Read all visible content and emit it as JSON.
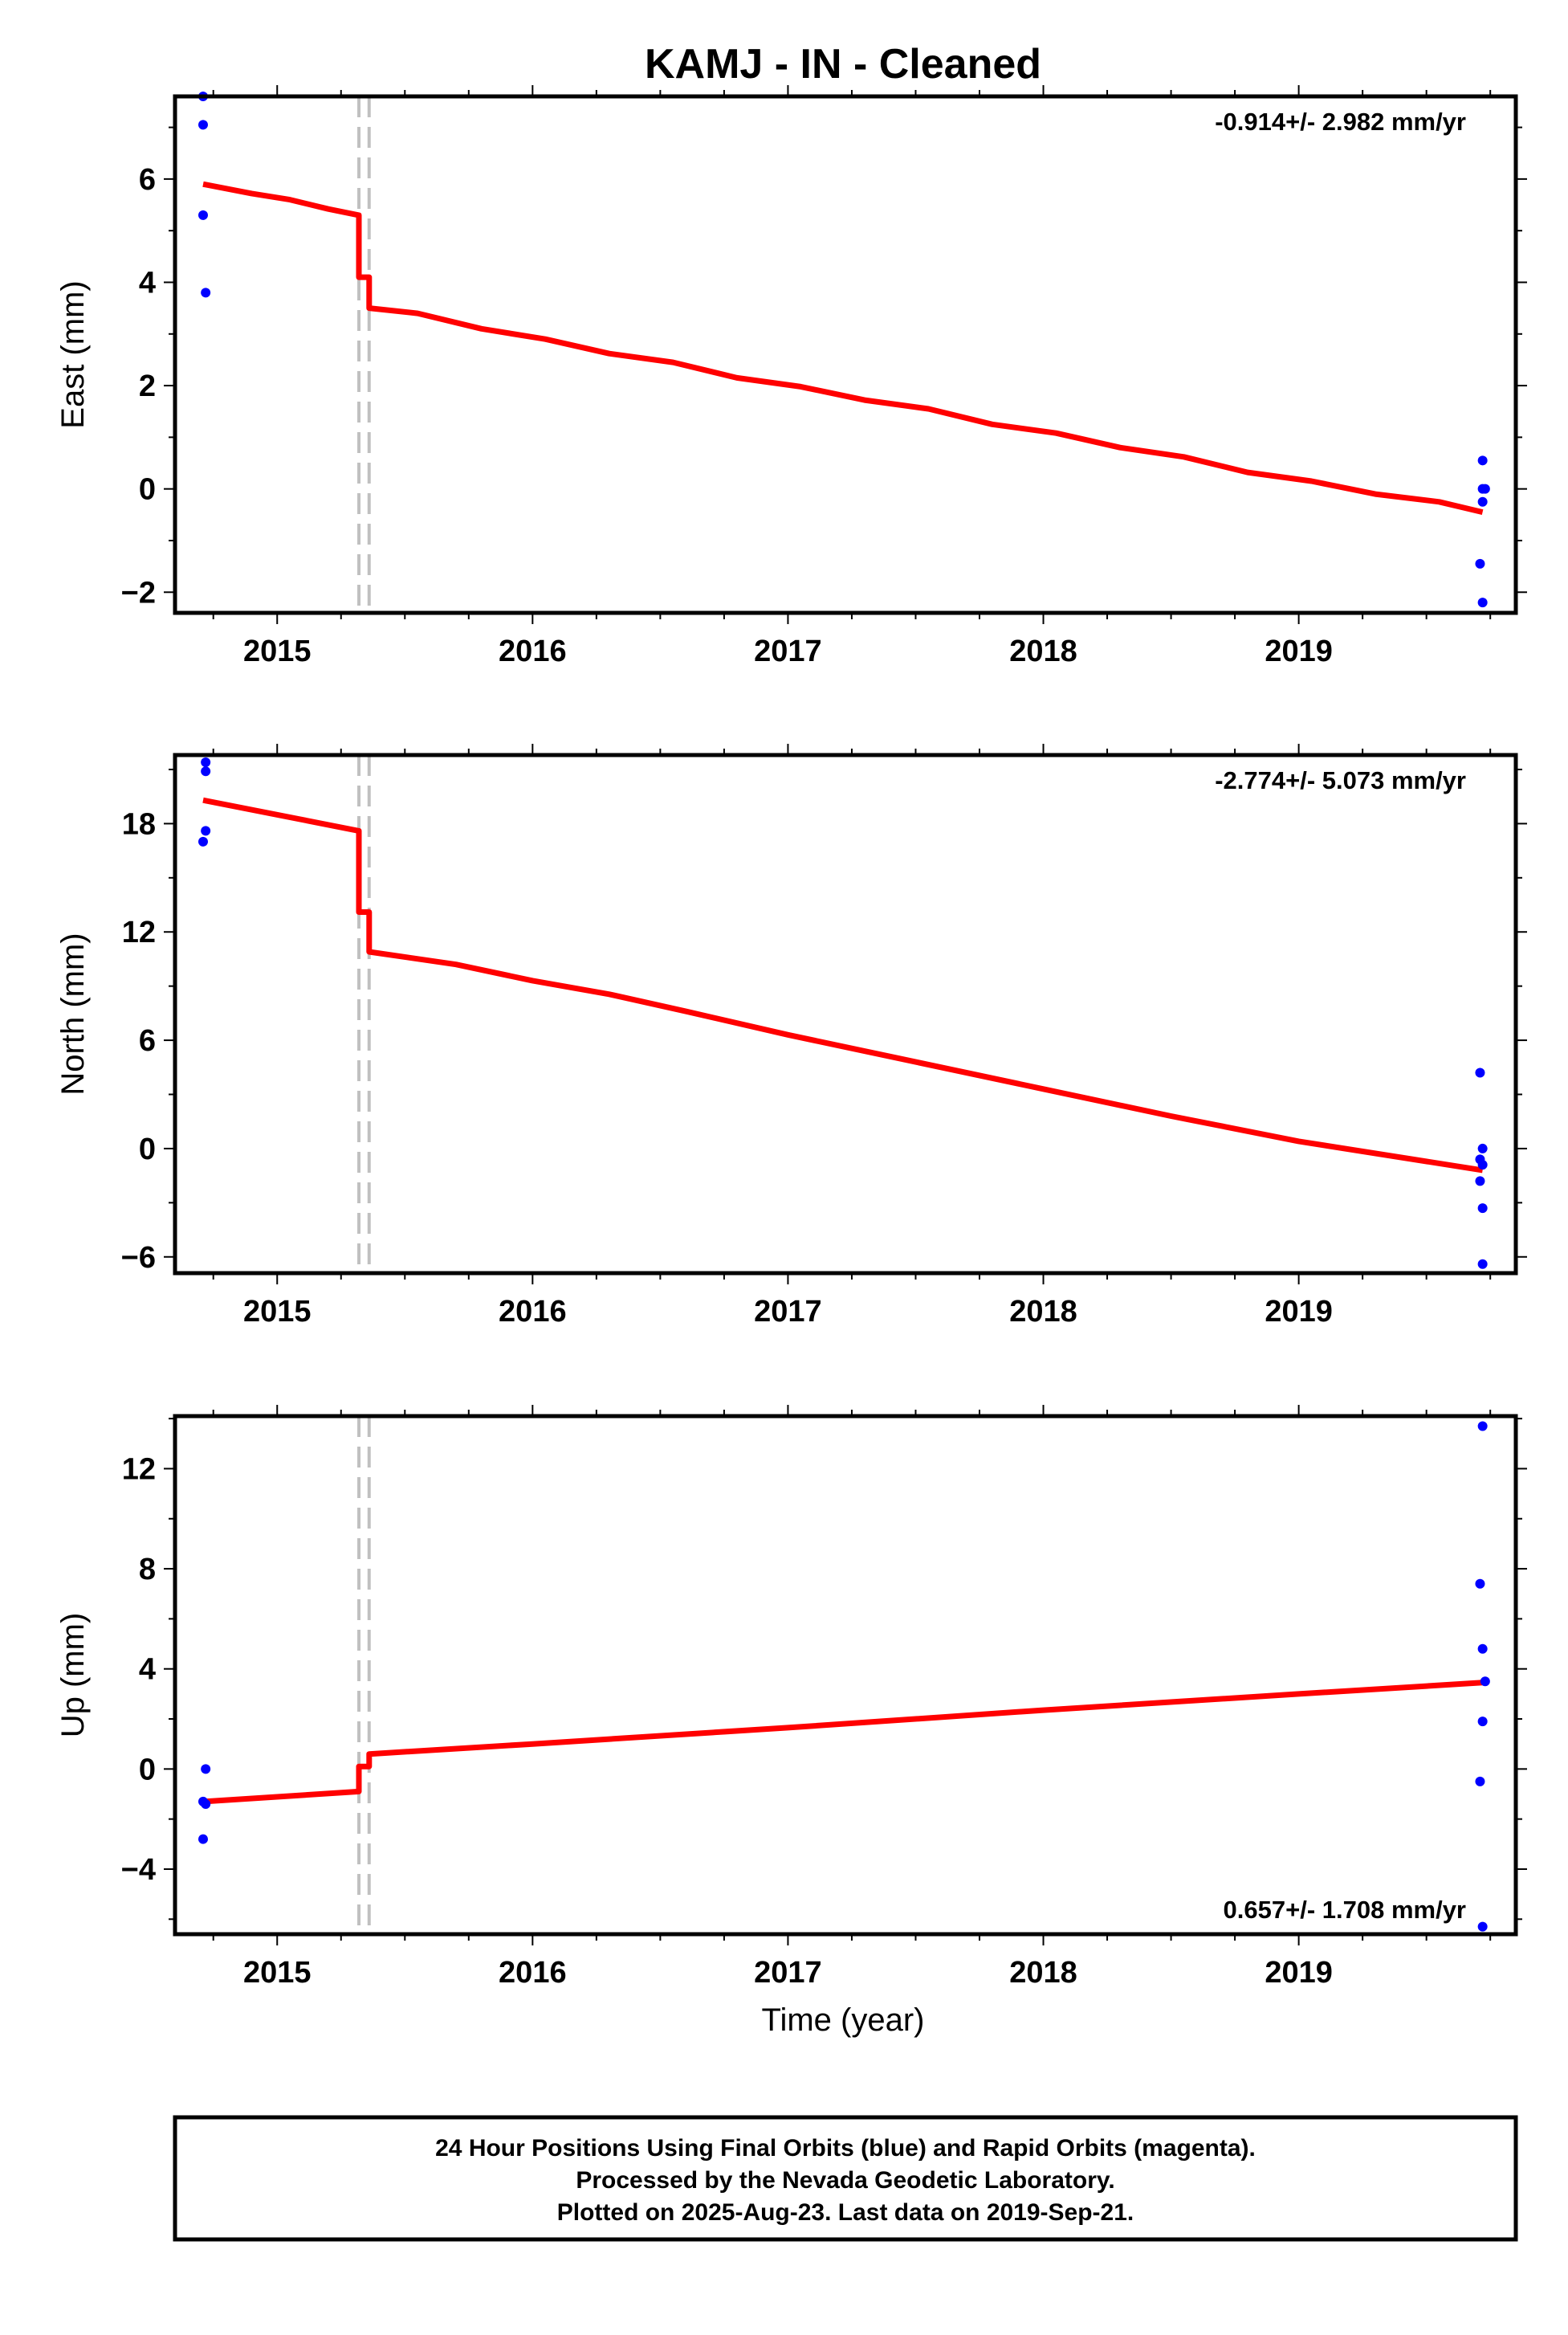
{
  "title": "KAMJ  - IN - Cleaned",
  "x_axis_label": "Time (year)",
  "footer": {
    "line1": "24 Hour Positions Using Final Orbits (blue) and Rapid Orbits (magenta).",
    "line2": "Processed by the Nevada Geodetic Laboratory.",
    "line3": "Plotted on 2025-Aug-23. Last data on 2019-Sep-21."
  },
  "colors": {
    "data_points": "#0000ff",
    "model_line": "#ff0000",
    "event_lines": "#c0c0c0",
    "frame": "#000000"
  },
  "chart_data": [
    {
      "type": "scatter",
      "name": "east",
      "ylabel": "East (mm)",
      "rate_label": "-0.914+/- 2.982 mm/yr",
      "rate_position": "top-right",
      "xlim": [
        2014.6,
        2019.85
      ],
      "ylim": [
        -2.4,
        7.6
      ],
      "x_ticks": [
        2015,
        2016,
        2017,
        2018,
        2019
      ],
      "x_tick_labels": [
        "2015",
        "2016",
        "2017",
        "2018",
        "2019"
      ],
      "y_ticks": [
        -2,
        0,
        2,
        4,
        6
      ],
      "y_tick_labels": [
        "−2",
        "0",
        "2",
        "4",
        "6"
      ],
      "event_lines_x": [
        2015.32,
        2015.36
      ],
      "points": [
        {
          "x": 2014.71,
          "y": 7.6
        },
        {
          "x": 2014.71,
          "y": 7.05
        },
        {
          "x": 2014.71,
          "y": 5.3
        },
        {
          "x": 2014.72,
          "y": 3.8
        },
        {
          "x": 2019.72,
          "y": 0.55
        },
        {
          "x": 2019.72,
          "y": 0.0
        },
        {
          "x": 2019.73,
          "y": 0.0
        },
        {
          "x": 2019.72,
          "y": -0.25
        },
        {
          "x": 2019.71,
          "y": -1.45
        },
        {
          "x": 2019.72,
          "y": -2.2
        }
      ],
      "model": [
        {
          "x": 2014.71,
          "y": 5.9
        },
        {
          "x": 2014.9,
          "y": 5.72
        },
        {
          "x": 2015.05,
          "y": 5.6
        },
        {
          "x": 2015.2,
          "y": 5.42
        },
        {
          "x": 2015.32,
          "y": 5.3
        },
        {
          "x": 2015.32,
          "y": 4.1
        },
        {
          "x": 2015.36,
          "y": 4.1
        },
        {
          "x": 2015.36,
          "y": 3.5
        },
        {
          "x": 2015.55,
          "y": 3.4
        },
        {
          "x": 2015.8,
          "y": 3.1
        },
        {
          "x": 2016.05,
          "y": 2.9
        },
        {
          "x": 2016.3,
          "y": 2.62
        },
        {
          "x": 2016.55,
          "y": 2.45
        },
        {
          "x": 2016.8,
          "y": 2.15
        },
        {
          "x": 2017.05,
          "y": 1.98
        },
        {
          "x": 2017.3,
          "y": 1.72
        },
        {
          "x": 2017.55,
          "y": 1.55
        },
        {
          "x": 2017.8,
          "y": 1.25
        },
        {
          "x": 2018.05,
          "y": 1.08
        },
        {
          "x": 2018.3,
          "y": 0.8
        },
        {
          "x": 2018.55,
          "y": 0.62
        },
        {
          "x": 2018.8,
          "y": 0.32
        },
        {
          "x": 2019.05,
          "y": 0.15
        },
        {
          "x": 2019.3,
          "y": -0.1
        },
        {
          "x": 2019.55,
          "y": -0.25
        },
        {
          "x": 2019.72,
          "y": -0.45
        }
      ]
    },
    {
      "type": "scatter",
      "name": "north",
      "ylabel": "North (mm)",
      "rate_label": "-2.774+/- 5.073 mm/yr",
      "rate_position": "top-right",
      "xlim": [
        2014.6,
        2019.85
      ],
      "ylim": [
        -6.9,
        21.8
      ],
      "x_ticks": [
        2015,
        2016,
        2017,
        2018,
        2019
      ],
      "x_tick_labels": [
        "2015",
        "2016",
        "2017",
        "2018",
        "2019"
      ],
      "y_ticks": [
        -6,
        0,
        6,
        12,
        18
      ],
      "y_tick_labels": [
        "−6",
        "0",
        "6",
        "12",
        "18"
      ],
      "event_lines_x": [
        2015.32,
        2015.36
      ],
      "points": [
        {
          "x": 2014.72,
          "y": 21.4
        },
        {
          "x": 2014.72,
          "y": 20.9
        },
        {
          "x": 2014.72,
          "y": 17.6
        },
        {
          "x": 2014.71,
          "y": 17.0
        },
        {
          "x": 2019.71,
          "y": 4.2
        },
        {
          "x": 2019.72,
          "y": 0.0
        },
        {
          "x": 2019.71,
          "y": -0.6
        },
        {
          "x": 2019.72,
          "y": -0.9
        },
        {
          "x": 2019.71,
          "y": -1.8
        },
        {
          "x": 2019.72,
          "y": -3.3
        },
        {
          "x": 2019.72,
          "y": -6.4
        }
      ],
      "model": [
        {
          "x": 2014.71,
          "y": 19.3
        },
        {
          "x": 2015.32,
          "y": 17.6
        },
        {
          "x": 2015.32,
          "y": 13.1
        },
        {
          "x": 2015.36,
          "y": 13.1
        },
        {
          "x": 2015.36,
          "y": 10.9
        },
        {
          "x": 2015.7,
          "y": 10.2
        },
        {
          "x": 2016.0,
          "y": 9.3
        },
        {
          "x": 2016.3,
          "y": 8.55
        },
        {
          "x": 2016.6,
          "y": 7.6
        },
        {
          "x": 2017.0,
          "y": 6.3
        },
        {
          "x": 2017.5,
          "y": 4.8
        },
        {
          "x": 2018.0,
          "y": 3.3
        },
        {
          "x": 2018.5,
          "y": 1.8
        },
        {
          "x": 2019.0,
          "y": 0.4
        },
        {
          "x": 2019.72,
          "y": -1.2
        }
      ]
    },
    {
      "type": "scatter",
      "name": "up",
      "ylabel": "Up (mm)",
      "rate_label": "0.657+/- 1.708 mm/yr",
      "rate_position": "bottom-right",
      "xlim": [
        2014.6,
        2019.85
      ],
      "ylim": [
        -6.6,
        14.1
      ],
      "x_ticks": [
        2015,
        2016,
        2017,
        2018,
        2019
      ],
      "x_tick_labels": [
        "2015",
        "2016",
        "2017",
        "2018",
        "2019"
      ],
      "y_ticks": [
        -4,
        0,
        4,
        8,
        12
      ],
      "y_tick_labels": [
        "−4",
        "0",
        "4",
        "8",
        "12"
      ],
      "event_lines_x": [
        2015.32,
        2015.36
      ],
      "points": [
        {
          "x": 2014.72,
          "y": 0.0
        },
        {
          "x": 2014.71,
          "y": -1.3
        },
        {
          "x": 2014.72,
          "y": -1.4
        },
        {
          "x": 2014.71,
          "y": -2.8
        },
        {
          "x": 2019.72,
          "y": 13.7
        },
        {
          "x": 2019.71,
          "y": 7.4
        },
        {
          "x": 2019.72,
          "y": 4.8
        },
        {
          "x": 2019.73,
          "y": 3.5
        },
        {
          "x": 2019.72,
          "y": 1.9
        },
        {
          "x": 2019.71,
          "y": -0.5
        },
        {
          "x": 2019.72,
          "y": -6.3
        }
      ],
      "model": [
        {
          "x": 2014.71,
          "y": -1.3
        },
        {
          "x": 2015.32,
          "y": -0.9
        },
        {
          "x": 2015.32,
          "y": 0.1
        },
        {
          "x": 2015.36,
          "y": 0.1
        },
        {
          "x": 2015.36,
          "y": 0.6
        },
        {
          "x": 2016.0,
          "y": 1.0
        },
        {
          "x": 2017.0,
          "y": 1.65
        },
        {
          "x": 2018.0,
          "y": 2.35
        },
        {
          "x": 2019.0,
          "y": 3.0
        },
        {
          "x": 2019.72,
          "y": 3.45
        }
      ]
    }
  ]
}
